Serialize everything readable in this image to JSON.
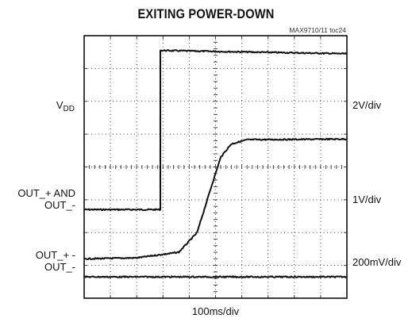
{
  "chart_data": {
    "type": "line",
    "title": "EXITING POWER-DOWN",
    "figure_ref": "MAX9710/11 toc24",
    "xlabel": "100ms/div",
    "x": {
      "divisions": 10,
      "unit_per_div": "100ms/div"
    },
    "y": {
      "divisions": 8
    },
    "grid": true,
    "series": [
      {
        "name": "VDD",
        "left_label_main": "V",
        "left_label_sub": "DD",
        "scale_label": "2V/div",
        "points": [
          [
            0,
            2.7
          ],
          [
            2.9,
            2.7
          ],
          [
            2.9,
            7.55
          ],
          [
            10,
            7.45
          ]
        ]
      },
      {
        "name": "OUT_+ AND OUT_-",
        "left_label_line1": "OUT_+ AND",
        "left_label_line2": "OUT_-",
        "scale_label": "1V/div",
        "points": [
          [
            0,
            1.2
          ],
          [
            2.0,
            1.23
          ],
          [
            3.6,
            1.4
          ],
          [
            4.3,
            2.0
          ],
          [
            4.8,
            3.3
          ],
          [
            5.2,
            4.3
          ],
          [
            5.6,
            4.7
          ],
          [
            6.2,
            4.83
          ],
          [
            10,
            4.85
          ]
        ]
      },
      {
        "name": "OUT_+ - OUT_-",
        "left_label_line1": "OUT_+ -",
        "left_label_line2": "OUT_-",
        "scale_label": "200mV/div",
        "points": [
          [
            0,
            0.65
          ],
          [
            10,
            0.65
          ]
        ]
      }
    ],
    "colors": {
      "trace": "#111111",
      "grid": "#444444",
      "background": "#ffffff"
    }
  }
}
